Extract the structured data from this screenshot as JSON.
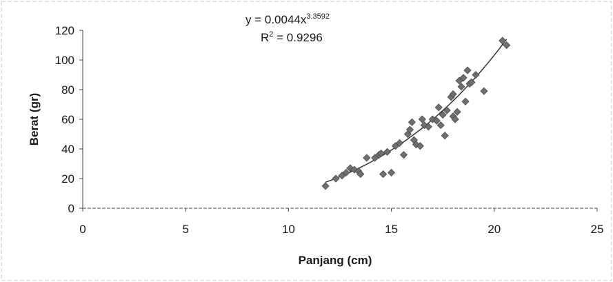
{
  "chart_data": {
    "type": "scatter",
    "xlabel": "Panjang (cm)",
    "ylabel": "Berat (gr)",
    "xlim": [
      0,
      25
    ],
    "ylim": [
      0,
      120
    ],
    "x_ticks": [
      0,
      5,
      10,
      15,
      20,
      25
    ],
    "y_ticks": [
      0,
      20,
      40,
      60,
      80,
      100,
      120
    ],
    "grid": false,
    "legend": "none",
    "equation": {
      "prefix": "y = 0.0044x",
      "exponent": "3.3592",
      "r2_prefix": "R",
      "r2_power": "2",
      "r2_value": " = 0.9296"
    },
    "trendline": {
      "type": "power",
      "coefficient": 0.0044,
      "exponent": 3.3592,
      "x_range": [
        11.8,
        20.6
      ]
    },
    "marker_color": "#6f6f6f",
    "points": [
      {
        "x": 11.8,
        "y": 15
      },
      {
        "x": 12.3,
        "y": 20
      },
      {
        "x": 12.6,
        "y": 22
      },
      {
        "x": 12.8,
        "y": 24
      },
      {
        "x": 13.0,
        "y": 27
      },
      {
        "x": 13.2,
        "y": 26
      },
      {
        "x": 13.4,
        "y": 25
      },
      {
        "x": 13.5,
        "y": 23
      },
      {
        "x": 13.8,
        "y": 34
      },
      {
        "x": 14.2,
        "y": 34
      },
      {
        "x": 14.4,
        "y": 36
      },
      {
        "x": 14.5,
        "y": 37
      },
      {
        "x": 14.6,
        "y": 23
      },
      {
        "x": 14.8,
        "y": 38
      },
      {
        "x": 15.0,
        "y": 24
      },
      {
        "x": 15.2,
        "y": 42
      },
      {
        "x": 15.4,
        "y": 44
      },
      {
        "x": 15.6,
        "y": 36
      },
      {
        "x": 15.8,
        "y": 50
      },
      {
        "x": 15.9,
        "y": 53
      },
      {
        "x": 16.0,
        "y": 58
      },
      {
        "x": 16.1,
        "y": 46
      },
      {
        "x": 16.2,
        "y": 43
      },
      {
        "x": 16.4,
        "y": 42
      },
      {
        "x": 16.5,
        "y": 60
      },
      {
        "x": 16.6,
        "y": 56
      },
      {
        "x": 16.8,
        "y": 55
      },
      {
        "x": 17.0,
        "y": 60
      },
      {
        "x": 17.2,
        "y": 59
      },
      {
        "x": 17.3,
        "y": 68
      },
      {
        "x": 17.4,
        "y": 56
      },
      {
        "x": 17.5,
        "y": 63
      },
      {
        "x": 17.6,
        "y": 49
      },
      {
        "x": 17.7,
        "y": 66
      },
      {
        "x": 17.9,
        "y": 75
      },
      {
        "x": 18.0,
        "y": 77
      },
      {
        "x": 18.0,
        "y": 62
      },
      {
        "x": 18.1,
        "y": 60
      },
      {
        "x": 18.2,
        "y": 65
      },
      {
        "x": 18.3,
        "y": 86
      },
      {
        "x": 18.4,
        "y": 82
      },
      {
        "x": 18.5,
        "y": 88
      },
      {
        "x": 18.6,
        "y": 72
      },
      {
        "x": 18.7,
        "y": 93
      },
      {
        "x": 18.8,
        "y": 84
      },
      {
        "x": 18.9,
        "y": 85
      },
      {
        "x": 19.1,
        "y": 90
      },
      {
        "x": 19.5,
        "y": 79
      },
      {
        "x": 20.4,
        "y": 113
      },
      {
        "x": 20.6,
        "y": 110
      }
    ]
  }
}
